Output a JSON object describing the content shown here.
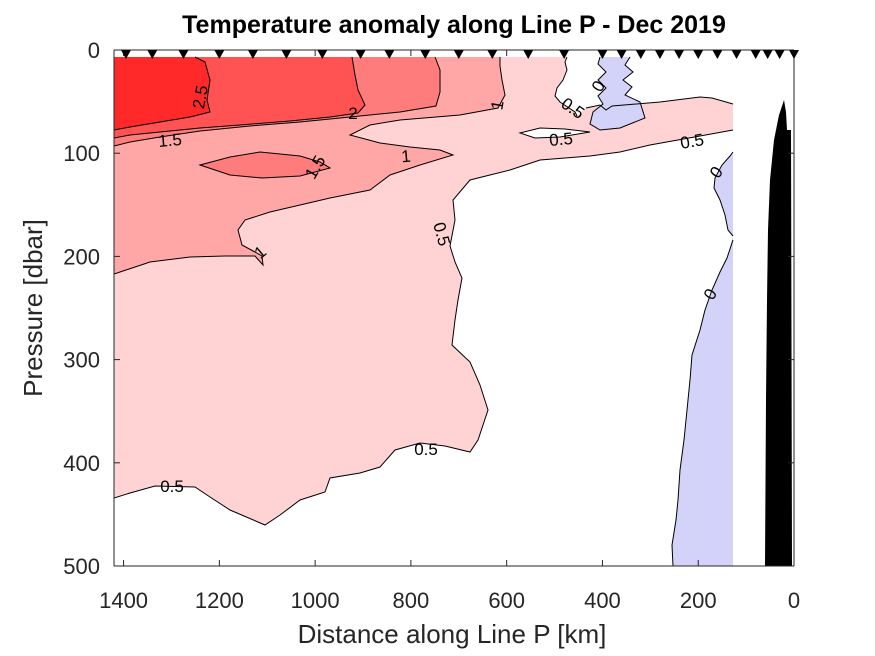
{
  "chart_data": {
    "type": "contour",
    "title": "Temperature anomaly along Line P - Dec 2019",
    "xlabel": "Distance along Line P [km]",
    "ylabel": "Pressure [dbar]",
    "xlim": [
      1420,
      0
    ],
    "ylim": [
      0,
      500
    ],
    "x_reversed": true,
    "y_reversed": true,
    "xticks": [
      1400,
      1200,
      1000,
      800,
      600,
      400,
      200,
      0
    ],
    "yticks": [
      0,
      100,
      200,
      300,
      400,
      500
    ],
    "grid": false,
    "colormap": "blue-white-red",
    "level_colors": {
      "-0.5_0": "#d3d3fa",
      "0_0.5": "#ffffff",
      "0.5_1": "#ffd3d3",
      "1_1.5": "#ffa6a6",
      "1.5_2": "#ff7c7c",
      "2_2.5": "#ff5252",
      "2.5_3": "#ff2929"
    },
    "contour_levels": [
      0,
      0.5,
      1,
      1.5,
      2,
      2.5
    ],
    "station_distances_km": [
      1395,
      1340,
      1275,
      1200,
      1130,
      1060,
      985,
      905,
      845,
      770,
      700,
      630,
      555,
      480,
      400,
      360,
      320,
      280,
      240,
      200,
      160,
      120,
      80,
      55,
      30,
      0
    ],
    "contour_labels": [
      {
        "text": "2.5",
        "x": 1275,
        "depth": 40
      },
      {
        "text": "2",
        "x": 920,
        "depth": 70
      },
      {
        "text": "1.5",
        "x": 1350,
        "depth": 92
      },
      {
        "text": "1.5",
        "x": 1040,
        "depth": 120
      },
      {
        "text": "1",
        "x": 800,
        "depth": 108
      },
      {
        "text": "1",
        "x": 620,
        "depth": 52
      },
      {
        "text": "1",
        "x": 1140,
        "depth": 205
      },
      {
        "text": "0.5",
        "x": 735,
        "depth": 188
      },
      {
        "text": "0.5",
        "x": 460,
        "depth": 58
      },
      {
        "text": "0.5",
        "x": 480,
        "depth": 88
      },
      {
        "text": "0.5",
        "x": 210,
        "depth": 92
      },
      {
        "text": "0.5",
        "x": 765,
        "depth": 427
      },
      {
        "text": "0.5",
        "x": 1320,
        "depth": 465
      },
      {
        "text": "0",
        "x": 400,
        "depth": 30
      },
      {
        "text": "0",
        "x": 170,
        "depth": 128
      },
      {
        "text": "0",
        "x": 175,
        "depth": 262
      }
    ],
    "bathymetry": "black seafloor near coast (x < 60 km), rising to ~65 dbar at x≈10 km"
  }
}
